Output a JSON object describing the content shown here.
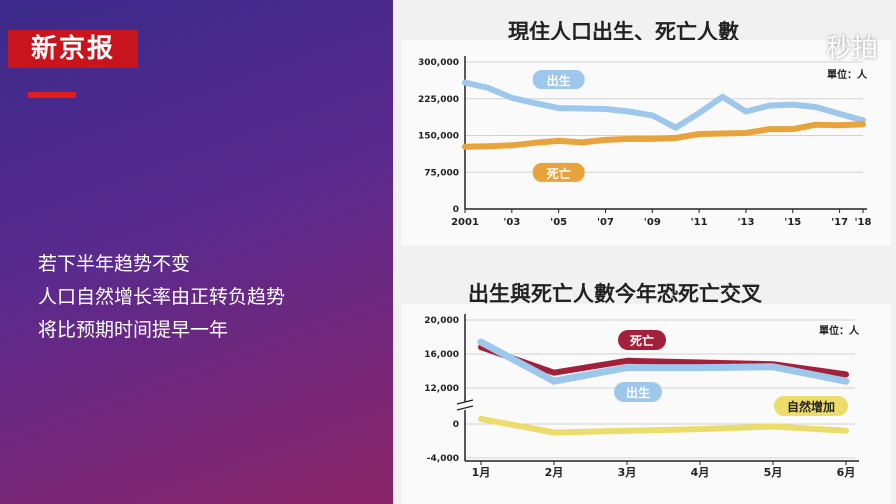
{
  "brand": {
    "name": "新京报",
    "color": "#c8141c"
  },
  "watermark": "秒拍",
  "caption_lines": [
    "若下半年趋势不变",
    "人口自然增长率由正转负趋势",
    "将比预期时间提早一年"
  ],
  "chart_data": [
    {
      "type": "line",
      "title": "現住人口出生、死亡人數",
      "unit_label": "單位：人",
      "x": [
        "2001",
        "2002",
        "2003",
        "2004",
        "2005",
        "2006",
        "2007",
        "2008",
        "2009",
        "2010",
        "2011",
        "2012",
        "2013",
        "2014",
        "2015",
        "2016",
        "2017",
        "2018"
      ],
      "tick_labels": [
        "2001",
        "'03",
        "'05",
        "'07",
        "'09",
        "'11",
        "'13",
        "'15",
        "'17",
        "'18"
      ],
      "tick_years": [
        "2001",
        "2003",
        "2005",
        "2007",
        "2009",
        "2011",
        "2013",
        "2015",
        "2017",
        "2018"
      ],
      "ylim": [
        0,
        300000
      ],
      "yticks": [
        0,
        75000,
        150000,
        225000,
        300000
      ],
      "ytick_labels": [
        "0",
        "75,000",
        "150,000",
        "225,000",
        "300,000"
      ],
      "series": [
        {
          "name": "出生",
          "color": "#9ec7ec",
          "values": [
            258000,
            247000,
            227000,
            216000,
            206000,
            205000,
            204000,
            199000,
            191000,
            166000,
            196000,
            229000,
            199000,
            211000,
            213000,
            208000,
            194000,
            181000
          ]
        },
        {
          "name": "死亡",
          "color": "#e8a33a",
          "values": [
            127000,
            128000,
            130000,
            135000,
            139000,
            136000,
            141000,
            143000,
            143000,
            145000,
            153000,
            154000,
            155000,
            163000,
            163000,
            172000,
            171000,
            173000
          ]
        }
      ]
    },
    {
      "type": "line",
      "title": "出生與死亡人數今年恐死亡交叉",
      "unit_label": "單位：人",
      "categories": [
        "1月",
        "2月",
        "3月",
        "4月",
        "5月",
        "6月"
      ],
      "ylim": [
        -4000,
        20000
      ],
      "yticks": [
        -4000,
        0,
        12000,
        16000,
        20000
      ],
      "ytick_labels": [
        "-4,000",
        "0",
        "12,000",
        "16,000",
        "20,000"
      ],
      "y_axis_break": true,
      "series": [
        {
          "name": "死亡",
          "color": "#a3203a",
          "values": [
            16800,
            13800,
            15200,
            15000,
            14800,
            13600
          ]
        },
        {
          "name": "出生",
          "color": "#9ec7ec",
          "values": [
            17400,
            12800,
            14400,
            14400,
            14500,
            12800
          ]
        },
        {
          "name": "自然增加",
          "color": "#ecdc6a",
          "values": [
            600,
            -1000,
            -800,
            -600,
            -300,
            -800
          ]
        }
      ]
    }
  ]
}
